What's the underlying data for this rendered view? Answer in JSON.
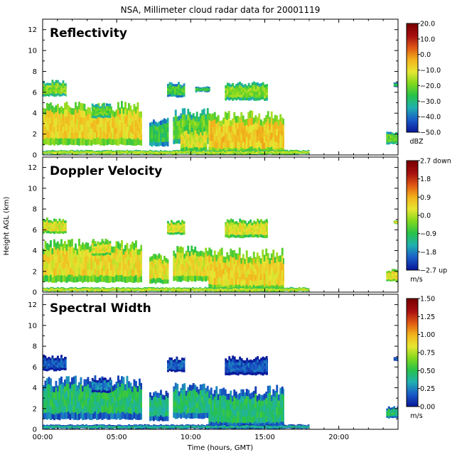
{
  "title": "NSA, Millimeter cloud radar data for 20001119",
  "colors": {
    "scale": [
      "#0a1c9c",
      "#1a5ec8",
      "#1fb0b0",
      "#27c24a",
      "#7fd81e",
      "#e6e632",
      "#f2b41c",
      "#e05a14",
      "#a81010",
      "#7a0000"
    ],
    "frame": "#000000"
  },
  "chart_data": [
    {
      "type": "heatmap",
      "title": "Reflectivity",
      "xlabel": "",
      "ylabel": "Height AGL (km)",
      "xticks": [
        "00:00",
        "05:00",
        "10:00",
        "15:00",
        "20:00"
      ],
      "xlim_hours": [
        0,
        24
      ],
      "yticks": [
        "0",
        "2",
        "4",
        "6",
        "8",
        "10",
        "12"
      ],
      "ylim_km": [
        0,
        13
      ],
      "colorbar": {
        "unit": "dBZ",
        "ticks": [
          "20.0",
          "10.0",
          "0.0",
          "−10.0",
          "−20.0",
          "−30.0",
          "−40.0",
          "−50.0"
        ],
        "range": [
          -50,
          20
        ]
      },
      "layers": [
        {
          "t0": 0.0,
          "t1": 6.7,
          "base": 0.9,
          "top": 5.2,
          "value": 0.6
        },
        {
          "t0": 0.0,
          "t1": 1.6,
          "base": 5.6,
          "top": 7.2,
          "value": 0.45
        },
        {
          "t0": 3.3,
          "t1": 4.6,
          "base": 3.5,
          "top": 5.0,
          "value": 0.4
        },
        {
          "t0": 7.2,
          "t1": 8.5,
          "base": 0.8,
          "top": 3.8,
          "value": 0.35
        },
        {
          "t0": 8.4,
          "t1": 9.6,
          "base": 5.5,
          "top": 7.0,
          "value": 0.38
        },
        {
          "t0": 8.8,
          "t1": 11.3,
          "base": 1.0,
          "top": 4.5,
          "value": 0.42
        },
        {
          "t0": 10.3,
          "t1": 11.3,
          "base": 6.0,
          "top": 6.6,
          "value": 0.35
        },
        {
          "t0": 11.2,
          "t1": 16.3,
          "base": 0.0,
          "top": 4.3,
          "value": 0.62
        },
        {
          "t0": 12.3,
          "t1": 15.2,
          "base": 5.2,
          "top": 7.1,
          "value": 0.45
        },
        {
          "t0": 9.3,
          "t1": 11.1,
          "base": 0.3,
          "top": 2.8,
          "value": 0.55
        },
        {
          "t0": 0.0,
          "t1": 18.0,
          "base": 0.0,
          "top": 0.5,
          "value": 0.5
        },
        {
          "t0": 23.2,
          "t1": 24.0,
          "base": 1.0,
          "top": 2.3,
          "value": 0.4
        },
        {
          "t0": 23.7,
          "t1": 24.0,
          "base": 6.5,
          "top": 7.0,
          "value": 0.3
        }
      ]
    },
    {
      "type": "heatmap",
      "title": "Doppler Velocity",
      "xlabel": "",
      "ylabel": "Height AGL (km)",
      "xticks": [
        "00:00",
        "05:00",
        "10:00",
        "15:00",
        "20:00"
      ],
      "xlim_hours": [
        0,
        24
      ],
      "yticks": [
        "0",
        "2",
        "4",
        "6",
        "8",
        "10",
        "12"
      ],
      "ylim_km": [
        0,
        13
      ],
      "colorbar": {
        "unit": "m/s",
        "ticks": [
          "2.7 down",
          "1.8",
          "0.9",
          "0.0",
          "−0.9",
          "−1.8",
          "−2.7 up"
        ],
        "range": [
          -2.7,
          2.7
        ]
      },
      "layers": [
        {
          "t0": 0.0,
          "t1": 6.7,
          "base": 0.9,
          "top": 5.2,
          "value": 0.58
        },
        {
          "t0": 0.0,
          "t1": 1.6,
          "base": 5.6,
          "top": 7.2,
          "value": 0.56
        },
        {
          "t0": 3.3,
          "t1": 4.6,
          "base": 3.5,
          "top": 5.0,
          "value": 0.56
        },
        {
          "t0": 7.2,
          "t1": 8.5,
          "base": 0.8,
          "top": 3.8,
          "value": 0.57
        },
        {
          "t0": 8.4,
          "t1": 9.6,
          "base": 5.5,
          "top": 7.0,
          "value": 0.55
        },
        {
          "t0": 8.8,
          "t1": 11.3,
          "base": 1.0,
          "top": 4.5,
          "value": 0.57
        },
        {
          "t0": 11.2,
          "t1": 16.3,
          "base": 0.0,
          "top": 4.3,
          "value": 0.6
        },
        {
          "t0": 12.3,
          "t1": 15.2,
          "base": 5.2,
          "top": 7.1,
          "value": 0.55
        },
        {
          "t0": 0.0,
          "t1": 18.0,
          "base": 0.0,
          "top": 0.5,
          "value": 0.52
        },
        {
          "t0": 23.2,
          "t1": 24.0,
          "base": 1.0,
          "top": 2.3,
          "value": 0.57
        },
        {
          "t0": 23.7,
          "t1": 24.0,
          "base": 6.5,
          "top": 7.0,
          "value": 0.55
        }
      ]
    },
    {
      "type": "heatmap",
      "title": "Spectral Width",
      "xlabel": "Time (hours, GMT)",
      "ylabel": "Height AGL (km)",
      "xticks": [
        "00:00",
        "05:00",
        "10:00",
        "15:00",
        "20:00"
      ],
      "xlim_hours": [
        0,
        24
      ],
      "yticks": [
        "0",
        "2",
        "4",
        "6",
        "8",
        "10",
        "12"
      ],
      "ylim_km": [
        0,
        13
      ],
      "colorbar": {
        "unit": "m/s",
        "ticks": [
          "1.50",
          "1.25",
          "1.00",
          "0.75",
          "0.50",
          "0.25",
          "0.00"
        ],
        "range": [
          0,
          1.5
        ]
      },
      "layers": [
        {
          "t0": 0.0,
          "t1": 6.7,
          "base": 0.9,
          "top": 5.2,
          "value": 0.3
        },
        {
          "t0": 0.0,
          "t1": 1.6,
          "base": 5.6,
          "top": 7.2,
          "value": 0.1
        },
        {
          "t0": 3.3,
          "t1": 4.6,
          "base": 3.5,
          "top": 5.0,
          "value": 0.15
        },
        {
          "t0": 7.2,
          "t1": 8.5,
          "base": 0.8,
          "top": 3.8,
          "value": 0.28
        },
        {
          "t0": 8.4,
          "t1": 9.6,
          "base": 5.5,
          "top": 7.0,
          "value": 0.12
        },
        {
          "t0": 8.8,
          "t1": 11.3,
          "base": 1.0,
          "top": 4.5,
          "value": 0.3
        },
        {
          "t0": 11.2,
          "t1": 16.3,
          "base": 0.0,
          "top": 4.3,
          "value": 0.3
        },
        {
          "t0": 12.3,
          "t1": 15.2,
          "base": 5.2,
          "top": 7.1,
          "value": 0.1
        },
        {
          "t0": 0.0,
          "t1": 18.0,
          "base": 0.0,
          "top": 0.5,
          "value": 0.25
        },
        {
          "t0": 23.2,
          "t1": 24.0,
          "base": 1.0,
          "top": 2.3,
          "value": 0.3
        },
        {
          "t0": 23.7,
          "t1": 24.0,
          "base": 6.5,
          "top": 7.0,
          "value": 0.1
        }
      ]
    }
  ]
}
